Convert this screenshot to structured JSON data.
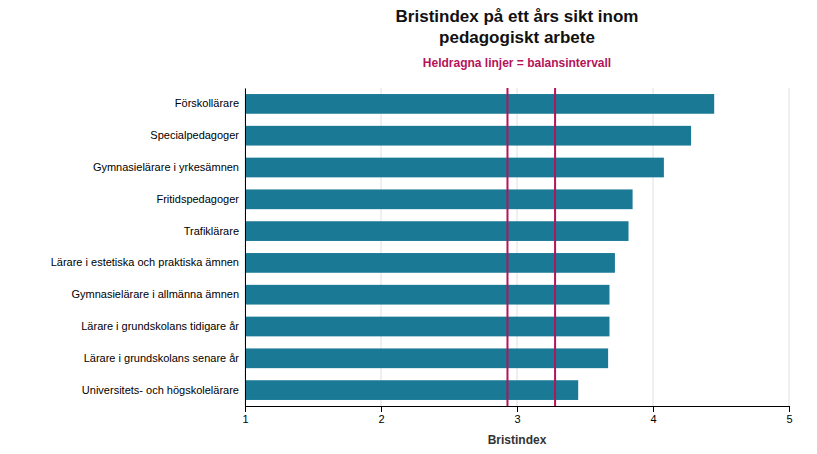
{
  "chart_data": {
    "type": "bar",
    "orientation": "horizontal",
    "title": "Bristindex på ett års sikt inom\npedagogiskt arbete",
    "subtitle": "Heldragna linjer = balansintervall",
    "categories": [
      "Förskollärare",
      "Specialpedagoger",
      "Gymnasielärare i yrkesämnen",
      "Fritidspedagoger",
      "Trafiklärare",
      "Lärare i estetiska och praktiska ämnen",
      "Gymnasielärare i allmänna ämnen",
      "Lärare i grundskolans tidigare år",
      "Lärare i grundskolans senare år",
      "Universitets- och högskolelärare"
    ],
    "values": [
      4.45,
      4.28,
      4.08,
      3.85,
      3.82,
      3.72,
      3.68,
      3.68,
      3.67,
      3.45
    ],
    "color": "#1a7a96",
    "vlines": {
      "values": [
        2.93,
        3.28
      ],
      "color": "#b5135a"
    },
    "xlabel": "Bristindex",
    "xlim": [
      1,
      5
    ],
    "xticks": [
      1,
      2,
      3,
      4,
      5
    ],
    "grid": true
  }
}
